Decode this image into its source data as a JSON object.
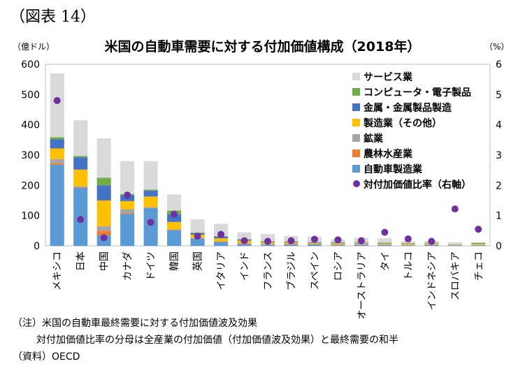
{
  "figure_label": "（図表 14）",
  "title": "米国の自動車需要に対する付加価値構成（2018年）",
  "unit_left": "（億ドル）",
  "unit_right": "（%）",
  "notes": [
    "（注）米国の自動車最終需要に対する付加価値波及効果",
    "対付加価値比率の分母は全産業の付加価値（付加価値波及効果）と最終需要の和半",
    "（資料）OECD"
  ],
  "chart_data": {
    "type": "bar",
    "stacked": true,
    "categories": [
      "メキシコ",
      "日本",
      "中国",
      "カナダ",
      "ドイツ",
      "韓国",
      "英国",
      "イタリア",
      "インド",
      "フランス",
      "ブラジル",
      "スペイン",
      "ロシア",
      "オーストラリア",
      "タイ",
      "トルコ",
      "インドネシア",
      "スロバキア",
      "チェコ"
    ],
    "y_left": {
      "min": 0,
      "max": 600,
      "ticks": [
        0,
        100,
        200,
        300,
        400,
        500,
        600
      ]
    },
    "y_right": {
      "min": 0,
      "max": 6,
      "ticks": [
        0,
        1,
        2,
        3,
        4,
        5,
        6
      ]
    },
    "series": [
      {
        "name": "自動車製造業",
        "color": "#5b9bd5",
        "values": [
          268,
          192,
          35,
          105,
          125,
          52,
          25,
          13,
          5,
          4,
          4,
          5,
          2,
          3,
          3,
          2,
          3,
          2,
          2
        ]
      },
      {
        "name": "農林水産業",
        "color": "#ed7d31",
        "values": [
          5,
          2,
          15,
          3,
          1,
          1,
          1,
          1,
          2,
          1,
          2,
          1,
          1,
          1,
          1,
          1,
          1,
          0,
          0
        ]
      },
      {
        "name": "鉱業",
        "color": "#a5a5a5",
        "values": [
          14,
          3,
          15,
          13,
          2,
          1,
          1,
          1,
          2,
          1,
          2,
          1,
          3,
          5,
          1,
          1,
          2,
          0,
          1
        ]
      },
      {
        "name": "製造業（その他）",
        "color": "#ffc000",
        "values": [
          35,
          55,
          85,
          27,
          35,
          25,
          10,
          10,
          8,
          6,
          4,
          3,
          3,
          2,
          3,
          3,
          3,
          2,
          4
        ]
      },
      {
        "name": "金属・金属製品製造",
        "color": "#4472c4",
        "values": [
          30,
          40,
          50,
          20,
          20,
          25,
          5,
          5,
          3,
          2,
          2,
          2,
          2,
          1,
          2,
          1,
          1,
          1,
          2
        ]
      },
      {
        "name": "コンピュータ・電子製品",
        "color": "#70ad47",
        "values": [
          7,
          5,
          25,
          3,
          3,
          13,
          2,
          2,
          2,
          1,
          1,
          1,
          1,
          1,
          1,
          1,
          1,
          0,
          1
        ]
      },
      {
        "name": "サービス業",
        "color": "#d9d9d9",
        "values": [
          211,
          118,
          130,
          109,
          94,
          53,
          44,
          41,
          23,
          24,
          18,
          17,
          10,
          14,
          14,
          6,
          5,
          7,
          2
        ]
      }
    ],
    "ratio_series": {
      "name": "対付加価値比率（右軸）",
      "color": "#7030a0",
      "values": [
        4.8,
        0.87,
        0.27,
        1.68,
        0.78,
        1.05,
        0.32,
        0.38,
        0.17,
        0.15,
        0.17,
        0.22,
        0.2,
        0.17,
        0.45,
        0.23,
        0.15,
        1.22,
        0.55
      ]
    }
  }
}
